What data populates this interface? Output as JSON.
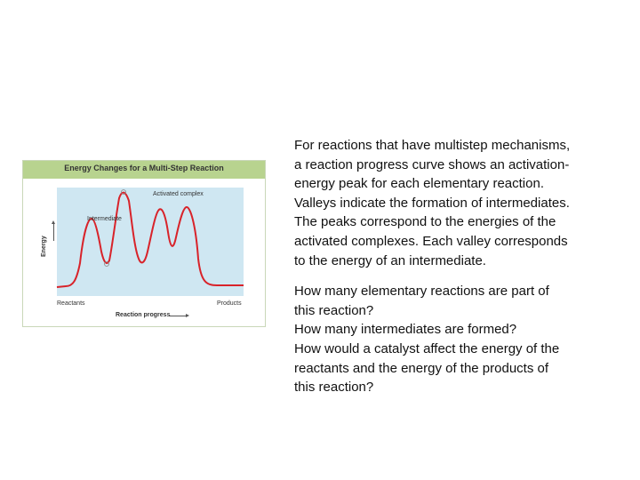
{
  "figure": {
    "title": "Energy Changes for a Multi-Step Reaction",
    "labels": {
      "activated_complex": "Activated complex",
      "intermediate": "Intermediate",
      "reactants": "Reactants",
      "products": "Products",
      "x_axis": "Reaction progress",
      "y_axis": "Energy"
    },
    "colors": {
      "header": "#b8d38f",
      "plot_background": "#cfe7f2",
      "curve": "#d8232a"
    }
  },
  "text": {
    "paragraph_lines": [
      "For reactions that have multistep mechanisms,",
      "a reaction progress curve shows an activation-",
      "energy peak for each elementary reaction.",
      "Valleys indicate the formation of intermediates.",
      "The peaks correspond to the energies of the",
      "activated complexes. Each valley corresponds",
      "to the energy of an intermediate."
    ],
    "question_lines": [
      "How many elementary reactions are part of",
      "this reaction?",
      "How many intermediates are formed?",
      "How would a catalyst affect the energy of the",
      "reactants and the energy of the products of",
      "this reaction?"
    ]
  }
}
